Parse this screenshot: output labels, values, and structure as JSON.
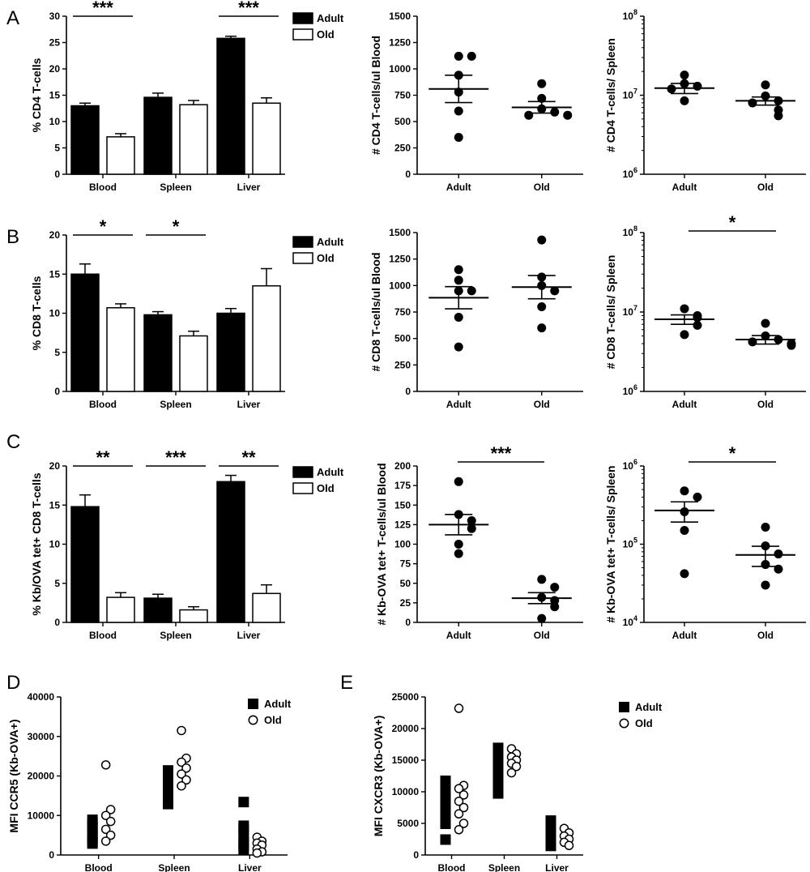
{
  "chart_data": [
    {
      "id": "A1",
      "panel_label": "A",
      "type": "bar",
      "ylabel": "% CD4 T-cells",
      "categories": [
        "Blood",
        "Spleen",
        "Liver"
      ],
      "ylim": [
        0,
        30
      ],
      "yticks": [
        0,
        5,
        10,
        15,
        20,
        25,
        30
      ],
      "legend": [
        "Adult",
        "Old"
      ],
      "series": [
        {
          "name": "Adult",
          "values": [
            13.0,
            14.6,
            25.8
          ],
          "errors": [
            0.5,
            0.8,
            0.4
          ]
        },
        {
          "name": "Old",
          "values": [
            7.1,
            13.2,
            13.5
          ],
          "errors": [
            0.6,
            0.8,
            1.0
          ]
        }
      ],
      "sig": [
        {
          "label": "***",
          "category": 0
        },
        {
          "label": "***",
          "category": 2
        }
      ]
    },
    {
      "id": "A2",
      "type": "scatter",
      "ylabel": "# CD4 T-cells/ul Blood",
      "categories": [
        "Adult",
        "Old"
      ],
      "ylim": [
        0,
        1500
      ],
      "yticks": [
        0,
        250,
        500,
        750,
        1000,
        1250,
        1500
      ],
      "points": [
        [
          1120,
          1120,
          940,
          780,
          600,
          350
        ],
        [
          860,
          720,
          620,
          590,
          560,
          560
        ]
      ],
      "mean": [
        810,
        635
      ],
      "sem": [
        130,
        55
      ]
    },
    {
      "id": "A3",
      "type": "scatter",
      "scale": "log",
      "ylabel": "# CD4 T-cells/ Spleen",
      "categories": [
        "Adult",
        "Old"
      ],
      "ylim": [
        1000000,
        100000000
      ],
      "yticklabels": [
        {
          "base": "10",
          "exp": "6"
        },
        {
          "base": "10",
          "exp": "7"
        },
        {
          "base": "10",
          "exp": "8"
        }
      ],
      "points": [
        [
          18000000,
          14000000,
          13000000,
          12000000,
          8500000
        ],
        [
          13500000,
          9800000,
          8500000,
          8000000,
          6500000,
          5500000
        ]
      ],
      "mean": [
        12300000,
        8500000
      ],
      "sem": [
        1800000,
        1000000
      ]
    },
    {
      "id": "B1",
      "panel_label": "B",
      "type": "bar",
      "ylabel": "% CD8 T-cells",
      "categories": [
        "Blood",
        "Spleen",
        "Liver"
      ],
      "ylim": [
        0,
        20
      ],
      "yticks": [
        0,
        5,
        10,
        15,
        20
      ],
      "legend": [
        "Adult",
        "Old"
      ],
      "series": [
        {
          "name": "Adult",
          "values": [
            15.0,
            9.8,
            10.0
          ],
          "errors": [
            1.3,
            0.4,
            0.6
          ]
        },
        {
          "name": "Old",
          "values": [
            10.7,
            7.1,
            13.5
          ],
          "errors": [
            0.5,
            0.6,
            2.2
          ]
        }
      ],
      "sig": [
        {
          "label": "*",
          "category": 0
        },
        {
          "label": "*",
          "category": 1
        }
      ]
    },
    {
      "id": "B2",
      "type": "scatter",
      "ylabel": "# CD8 T-cells/ul Blood",
      "categories": [
        "Adult",
        "Old"
      ],
      "ylim": [
        0,
        1500
      ],
      "yticks": [
        0,
        250,
        500,
        750,
        1000,
        1250,
        1500
      ],
      "points": [
        [
          1150,
          1050,
          950,
          950,
          700,
          420
        ],
        [
          1430,
          1080,
          1000,
          950,
          800,
          600
        ]
      ],
      "mean": [
        885,
        985
      ],
      "sem": [
        105,
        110
      ]
    },
    {
      "id": "B3",
      "type": "scatter",
      "scale": "log",
      "ylabel": "# CD8 T-cells/ Spleen",
      "categories": [
        "Adult",
        "Old"
      ],
      "ylim": [
        1000000,
        100000000
      ],
      "yticklabels": [
        {
          "base": "10",
          "exp": "6"
        },
        {
          "base": "10",
          "exp": "7"
        },
        {
          "base": "10",
          "exp": "8"
        }
      ],
      "points": [
        [
          11000000,
          9000000,
          8500000,
          6800000,
          5200000
        ],
        [
          7200000,
          5000000,
          4500000,
          4200000,
          4000000,
          3800000
        ]
      ],
      "mean": [
        8100000,
        4500000
      ],
      "sem": [
        1100000,
        550000
      ],
      "sig": [
        {
          "label": "*"
        }
      ]
    },
    {
      "id": "C1",
      "panel_label": "C",
      "type": "bar",
      "ylabel": "% Kb/OVA tet+ CD8 T-cells",
      "categories": [
        "Blood",
        "Spleen",
        "Liver"
      ],
      "ylim": [
        0,
        20
      ],
      "yticks": [
        0,
        5,
        10,
        15,
        20
      ],
      "legend": [
        "Adult",
        "Old"
      ],
      "series": [
        {
          "name": "Adult",
          "values": [
            14.8,
            3.1,
            18.0
          ],
          "errors": [
            1.5,
            0.5,
            0.8
          ]
        },
        {
          "name": "Old",
          "values": [
            3.2,
            1.6,
            3.7
          ],
          "errors": [
            0.6,
            0.4,
            1.1
          ]
        }
      ],
      "sig": [
        {
          "label": "**",
          "category": 0
        },
        {
          "label": "***",
          "category": 1
        },
        {
          "label": "**",
          "category": 2
        }
      ]
    },
    {
      "id": "C2",
      "type": "scatter",
      "ylabel": "# Kb-OVA tet+ T-cells/ul Blood",
      "categories": [
        "Adult",
        "Old"
      ],
      "ylim": [
        0,
        200
      ],
      "yticks": [
        0,
        25,
        50,
        75,
        100,
        125,
        150,
        175,
        200
      ],
      "points": [
        [
          180,
          138,
          130,
          120,
          100,
          88
        ],
        [
          55,
          45,
          32,
          28,
          20,
          5
        ]
      ],
      "mean": [
        125,
        31
      ],
      "sem": [
        13,
        7
      ],
      "sig": [
        {
          "label": "***"
        }
      ]
    },
    {
      "id": "C3",
      "type": "scatter",
      "scale": "log",
      "ylabel": "# Kb-OVA tet+ T-cells/ Spleen",
      "categories": [
        "Adult",
        "Old"
      ],
      "ylim": [
        10000,
        1000000
      ],
      "yticklabels": [
        {
          "base": "10",
          "exp": "4"
        },
        {
          "base": "10",
          "exp": "5"
        },
        {
          "base": "10",
          "exp": "6"
        }
      ],
      "points": [
        [
          480000,
          400000,
          260000,
          150000,
          42000
        ],
        [
          165000,
          95000,
          75000,
          55000,
          48000,
          30000
        ]
      ],
      "mean": [
        270000,
        73000
      ],
      "sem": [
        78000,
        21000
      ],
      "sig": [
        {
          "label": "*"
        }
      ]
    },
    {
      "id": "D",
      "panel_label": "D",
      "type": "scatter",
      "ylabel": "MFI CCR5 (Kb-OVA+)",
      "categories": [
        "Blood",
        "Spleen",
        "Liver"
      ],
      "ylim": [
        0,
        40000
      ],
      "yticks": [
        0,
        10000,
        20000,
        30000,
        40000
      ],
      "legend": [
        "Adult",
        "Old"
      ],
      "series": [
        {
          "name": "Adult",
          "values": [
            [
              9000,
              8000,
              7000,
              5500,
              4500,
              3500,
              3000
            ],
            [
              21500,
              20000,
              19000,
              17500,
              16000,
              14500,
              13000
            ],
            [
              13500,
              7500,
              6500,
              5000,
              3500,
              2500,
              1500
            ]
          ]
        },
        {
          "name": "Old",
          "values": [
            [
              22800,
              11500,
              10000,
              8500,
              6500,
              5000,
              3500
            ],
            [
              31500,
              24500,
              23500,
              22000,
              20500,
              19000,
              17500
            ],
            [
              4500,
              3500,
              3000,
              2500,
              1500,
              800,
              500
            ]
          ]
        }
      ]
    },
    {
      "id": "E",
      "panel_label": "E",
      "type": "scatter",
      "ylabel": "MFI CXCR3 (Kb-OVA+)",
      "categories": [
        "Blood",
        "Spleen",
        "Liver"
      ],
      "ylim": [
        0,
        25000
      ],
      "yticks": [
        0,
        5000,
        10000,
        15000,
        20000,
        25000
      ],
      "legend": [
        "Adult",
        "Old"
      ],
      "series": [
        {
          "name": "Adult",
          "values": [
            [
              11800,
              11000,
              10000,
              9000,
              8000,
              7000,
              6000,
              5000,
              2500
            ],
            [
              17000,
              16500,
              15500,
              14500,
              13500,
              12500,
              11500,
              10500,
              9800
            ],
            [
              5500,
              4500,
              3500,
              2500,
              2000,
              1500
            ]
          ]
        },
        {
          "name": "Old",
          "values": [
            [
              23200,
              11000,
              10500,
              9500,
              8500,
              7500,
              6500,
              5000,
              4000
            ],
            [
              16800,
              16000,
              15500,
              15000,
              14500,
              14000,
              13000
            ],
            [
              4200,
              3500,
              3000,
              2500,
              2000,
              1500
            ]
          ]
        }
      ]
    }
  ]
}
